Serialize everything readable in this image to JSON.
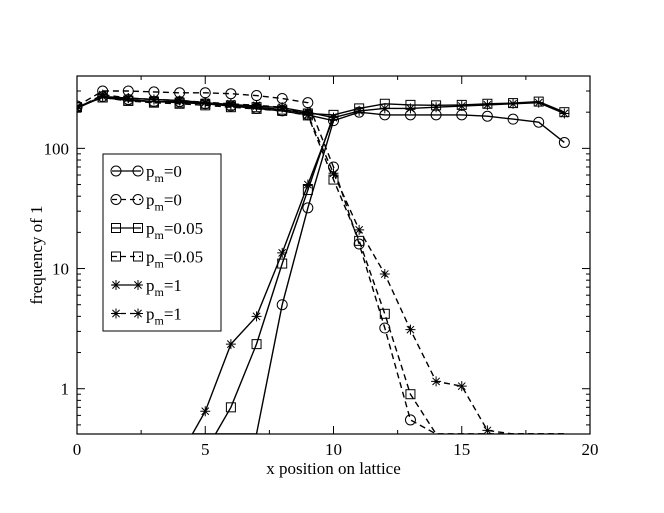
{
  "chart_data": {
    "type": "line",
    "xlabel": "x position on lattice",
    "ylabel": "frequency of 1",
    "xlim": [
      0,
      20
    ],
    "ylim": [
      0.42,
      400
    ],
    "yscale": "log",
    "grid": false,
    "legend_position": "left-middle",
    "x_ticks": [
      0,
      5,
      10,
      15,
      20
    ],
    "x_tick_labels": [
      "0",
      "5",
      "10",
      "15",
      "20"
    ],
    "y_ticks": [
      1,
      10,
      100
    ],
    "y_tick_labels": [
      "1",
      "10",
      "100"
    ],
    "series": [
      {
        "name": "p_m=0",
        "label_main": "p",
        "label_sub": "m",
        "label_rest": "=0",
        "marker": "circle",
        "dash": "solid",
        "x": [
          0,
          1,
          2,
          3,
          4,
          5,
          6,
          7,
          8,
          9,
          10,
          11,
          12,
          13,
          14,
          15,
          16,
          17,
          18,
          19
        ],
        "y": [
          220,
          270,
          255,
          245,
          245,
          235,
          225,
          215,
          205,
          190,
          170,
          200,
          190,
          190,
          190,
          190,
          185,
          175,
          165,
          112
        ]
      },
      {
        "name": "p_m=0",
        "label_main": "p",
        "label_sub": "m",
        "label_rest": "=0",
        "marker": "circle",
        "dash": "dashed",
        "x": [
          0,
          1,
          2,
          3,
          4,
          5,
          6,
          7,
          8,
          9,
          10,
          11,
          12,
          13,
          14,
          15,
          16,
          17,
          18,
          19
        ],
        "y": [
          225,
          300,
          300,
          295,
          290,
          290,
          285,
          275,
          260,
          240,
          70,
          16,
          3.2,
          0.55,
          0.42,
          0.42,
          0.42,
          0.42,
          0.42,
          0.42
        ]
      },
      {
        "name": "p_m=0.05",
        "label_main": "p",
        "label_sub": "m",
        "label_rest": "=0.05",
        "marker": "square",
        "dash": "solid",
        "x": [
          0,
          1,
          2,
          3,
          4,
          5,
          6,
          7,
          8,
          9,
          10,
          11,
          12,
          13,
          14,
          15,
          16,
          17,
          18,
          19
        ],
        "y": [
          220,
          265,
          250,
          245,
          240,
          235,
          228,
          220,
          210,
          195,
          190,
          215,
          235,
          230,
          228,
          230,
          235,
          238,
          245,
          200
        ]
      },
      {
        "name": "p_m=0.05",
        "label_main": "p",
        "label_sub": "m",
        "label_rest": "=0.05",
        "marker": "square",
        "dash": "dashed",
        "x": [
          0,
          1,
          2,
          3,
          4,
          5,
          6,
          7,
          8,
          9,
          10,
          11,
          12,
          13,
          14,
          15,
          16,
          17,
          18,
          19
        ],
        "y": [
          220,
          265,
          248,
          240,
          235,
          228,
          220,
          213,
          205,
          188,
          55,
          17,
          4.2,
          0.9,
          0.42,
          0.42,
          0.42,
          0.42,
          0.42,
          0.42
        ]
      },
      {
        "name": "p_m=1",
        "label_main": "p",
        "label_sub": "m",
        "label_rest": "=1",
        "marker": "star",
        "dash": "solid",
        "x": [
          0,
          1,
          2,
          3,
          4,
          5,
          6,
          7,
          8,
          9,
          10,
          11,
          12,
          13,
          14,
          15,
          16,
          17,
          18,
          19
        ],
        "y": [
          215,
          270,
          262,
          255,
          250,
          240,
          232,
          225,
          218,
          200,
          180,
          205,
          215,
          215,
          220,
          225,
          230,
          235,
          240,
          195
        ]
      },
      {
        "name": "p_m=1",
        "label_main": "p",
        "label_sub": "m",
        "label_rest": "=1",
        "marker": "star",
        "dash": "dashed",
        "x": [
          0,
          1,
          2,
          3,
          4,
          5,
          6,
          7,
          8,
          9,
          10,
          11,
          12,
          13,
          14,
          15,
          16,
          17,
          18,
          19
        ],
        "y": [
          215,
          280,
          262,
          255,
          250,
          242,
          235,
          228,
          220,
          190,
          62,
          21,
          9,
          3.1,
          1.15,
          1.05,
          0.45,
          0.42,
          0.42,
          0.42
        ]
      }
    ],
    "low_tail": {
      "note_hidden": false,
      "p0_solid": {
        "x": [
          4.5,
          7.0,
          8.0,
          9.0,
          10.0
        ],
        "y": [
          0.42,
          0.42,
          5,
          32,
          170
        ]
      },
      "p005_solid": {
        "x": [
          5.4,
          6.0,
          7.0,
          8.0,
          9.0,
          10.0
        ],
        "y": [
          0.42,
          0.7,
          2.35,
          11,
          45,
          190
        ]
      },
      "p1_solid": {
        "x": [
          4.5,
          5.0,
          6.0,
          7.0,
          8.0,
          9.0,
          10.0
        ],
        "y": [
          0.42,
          0.65,
          2.35,
          4,
          13.5,
          50,
          180
        ]
      }
    }
  }
}
